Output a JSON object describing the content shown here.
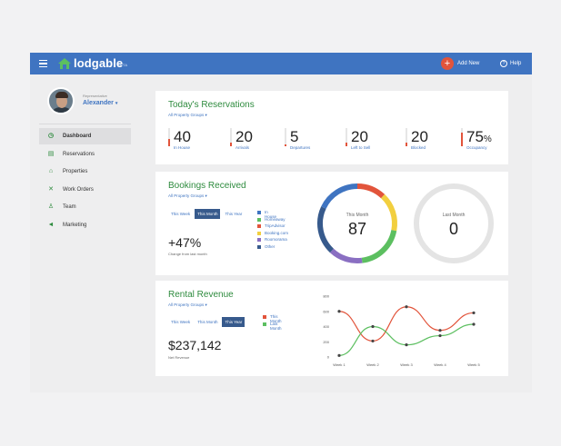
{
  "app": {
    "logo": "lodgable",
    "beta": "BETA"
  },
  "topbar": {
    "add_new_symbol": "+",
    "add_new": "Add New",
    "help_symbol": "?",
    "help": "Help"
  },
  "user": {
    "role": "Representative",
    "name": "Alexander",
    "caret": "▾"
  },
  "sidebar": {
    "items": [
      {
        "label": "Dashboard",
        "icon": "clock-icon",
        "glyph": "◷",
        "active": true
      },
      {
        "label": "Reservations",
        "icon": "calendar-icon",
        "glyph": "▤",
        "active": false
      },
      {
        "label": "Properties",
        "icon": "home-icon",
        "glyph": "⌂",
        "active": false
      },
      {
        "label": "Work Orders",
        "icon": "tools-icon",
        "glyph": "✕",
        "active": false
      },
      {
        "label": "Team",
        "icon": "person-icon",
        "glyph": "♙",
        "active": false
      },
      {
        "label": "Marketing",
        "icon": "megaphone-icon",
        "glyph": "◄",
        "active": false
      }
    ]
  },
  "reservations": {
    "title": "Today's Reservations",
    "filter": "All Property Groups ▾",
    "stats": [
      {
        "value": "40",
        "label": "In House",
        "fill": 0.4
      },
      {
        "value": "20",
        "label": "Arrivals",
        "fill": 0.2
      },
      {
        "value": "5",
        "label": "Departures",
        "fill": 0.05
      },
      {
        "value": "20",
        "label": "Left to Sell",
        "fill": 0.2
      },
      {
        "value": "20",
        "label": "Blocked",
        "fill": 0.2
      },
      {
        "value": "75",
        "unit": "%",
        "label": "Occupancy",
        "fill": 0.75
      }
    ]
  },
  "bookings": {
    "title": "Bookings Received",
    "filter": "All Property Groups ▾",
    "tabs": [
      "This Week",
      "This Month",
      "This Year"
    ],
    "active_tab": 1,
    "change": "+47%",
    "change_note": "Change from last month",
    "legend": [
      {
        "label": "In House",
        "color": "#3f74c1"
      },
      {
        "label": "Homeaway",
        "color": "#5cbf60"
      },
      {
        "label": "TripAdvisor",
        "color": "#e2543b"
      },
      {
        "label": "Booking.com",
        "color": "#f2cf3f"
      },
      {
        "label": "Roomorama",
        "color": "#8a6fc2"
      },
      {
        "label": "Other",
        "color": "#375a8c"
      }
    ],
    "this_month_label": "This Month",
    "this_month_value": "87",
    "last_month_label": "Last Month",
    "last_month_value": "0",
    "slices": [
      {
        "color": "#e2543b",
        "value": 12
      },
      {
        "color": "#f2cf3f",
        "value": 16
      },
      {
        "color": "#5cbf60",
        "value": 20
      },
      {
        "color": "#8a6fc2",
        "value": 14
      },
      {
        "color": "#375a8c",
        "value": 20
      },
      {
        "color": "#3f74c1",
        "value": 18
      }
    ]
  },
  "revenue": {
    "title": "Rental Revenue",
    "filter": "All Property Groups ▾",
    "tabs": [
      "This Week",
      "This Month",
      "This Year"
    ],
    "active_tab": 2,
    "amount": "$237,142",
    "amount_note": "Net Revenue",
    "legend": [
      {
        "label": "This Month",
        "color": "#e2543b"
      },
      {
        "label": "Last Month",
        "color": "#5cbf60"
      }
    ]
  },
  "chart_data": {
    "type": "line",
    "x": [
      "Week 1",
      "Week 2",
      "Week 3",
      "Week 4",
      "Week 5"
    ],
    "ylim": [
      0,
      800
    ],
    "yticks": [
      0,
      200,
      400,
      600,
      800
    ],
    "series": [
      {
        "name": "This Month",
        "color": "#e2543b",
        "values": [
          600,
          210,
          660,
          350,
          580
        ]
      },
      {
        "name": "Last Month",
        "color": "#5cbf60",
        "values": [
          20,
          400,
          160,
          280,
          430
        ]
      }
    ]
  }
}
